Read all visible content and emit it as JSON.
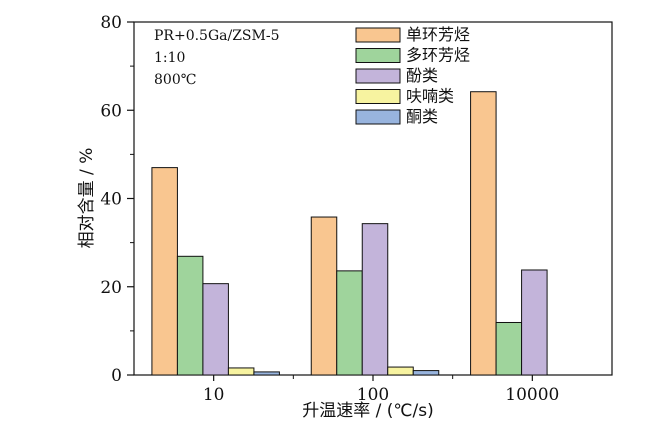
{
  "chart_data": {
    "type": "bar",
    "annotations": [
      "PR+0.5Ga/ZSM-5",
      "1:10",
      "800℃"
    ],
    "xlabel": "升温速率 / (℃/s)",
    "ylabel": "相对含量 / %",
    "categories": [
      "10",
      "100",
      "10000"
    ],
    "ylim": [
      0,
      80
    ],
    "yticks": [
      0,
      20,
      40,
      60,
      80
    ],
    "legend_position": "top-center",
    "grid": false,
    "series": [
      {
        "name": "单环芳烃",
        "color": "#f9c690",
        "values": [
          47.0,
          35.8,
          64.2
        ]
      },
      {
        "name": "多环芳烃",
        "color": "#9fd49c",
        "values": [
          26.9,
          23.6,
          11.9
        ]
      },
      {
        "name": "酚类",
        "color": "#c3b4da",
        "values": [
          20.7,
          34.3,
          23.8
        ]
      },
      {
        "name": "呋喃类",
        "color": "#f7f3a0",
        "values": [
          1.6,
          1.8,
          0
        ]
      },
      {
        "name": "酮类",
        "color": "#98b4de",
        "values": [
          0.7,
          1.0,
          0
        ]
      }
    ]
  }
}
